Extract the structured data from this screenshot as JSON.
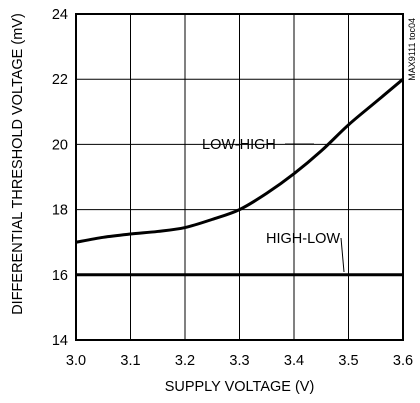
{
  "chart_data": {
    "type": "line",
    "title": "",
    "xlabel": "SUPPLY VOLTAGE (V)",
    "ylabel": "DIFFERENTIAL THRESHOLD VOLTAGE (mV)",
    "xlim": [
      3.0,
      3.6
    ],
    "ylim": [
      14,
      24
    ],
    "xticks": [
      3.0,
      3.1,
      3.2,
      3.3,
      3.4,
      3.5,
      3.6
    ],
    "xtick_labels": [
      "3.0",
      "3.1",
      "3.2",
      "3.3",
      "3.4",
      "3.5",
      "3.6"
    ],
    "yticks": [
      14,
      16,
      18,
      20,
      22,
      24
    ],
    "ytick_labels": [
      "14",
      "16",
      "18",
      "20",
      "22",
      "24"
    ],
    "grid": true,
    "legend": "none",
    "series": [
      {
        "name": "LOW-HIGH",
        "x": [
          3.0,
          3.05,
          3.1,
          3.15,
          3.2,
          3.25,
          3.3,
          3.35,
          3.4,
          3.45,
          3.5,
          3.55,
          3.6
        ],
        "y": [
          17.0,
          17.15,
          17.25,
          17.33,
          17.45,
          17.7,
          18.0,
          18.5,
          19.1,
          19.8,
          20.6,
          21.3,
          22.0
        ]
      },
      {
        "name": "HIGH-LOW",
        "x": [
          3.0,
          3.6
        ],
        "y": [
          16.0,
          16.0
        ]
      }
    ],
    "annotations": [
      {
        "text": "LOW-HIGH",
        "series": "LOW-HIGH"
      },
      {
        "text": "HIGH-LOW",
        "series": "HIGH-LOW"
      }
    ],
    "watermark": "MAX9111 toc04",
    "colors": {
      "line": "#000000",
      "grid": "#000000",
      "background": "#ffffff"
    }
  }
}
